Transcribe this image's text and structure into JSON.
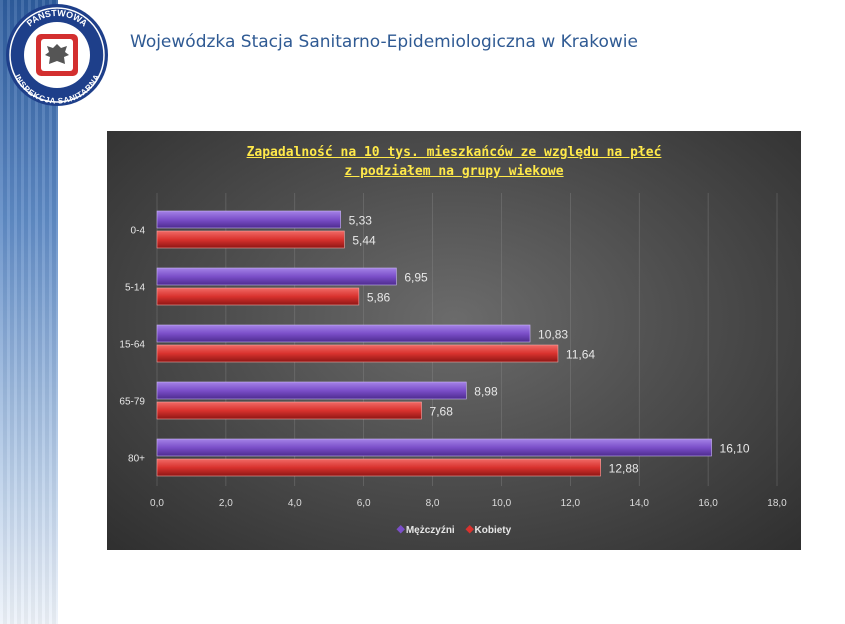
{
  "header": {
    "title": "Wojewódzka Stacja Sanitarno-Epidemiologiczna w Krakowie",
    "logo_text_top": "PAŃSTWOWA",
    "logo_text_bottom": "INSPEKCJA SANITARNA"
  },
  "colors": {
    "header_text": "#2f5a93",
    "series_men": "#7b4fc9",
    "series_women": "#d9322e",
    "title_yellow": "#ffe94a"
  },
  "chart_data": {
    "type": "bar",
    "orientation": "horizontal",
    "title_line1": "Zapadalność na 10 tys. mieszkańców ze względu na płeć",
    "title_line2": "z podziałem na grupy wiekowe",
    "categories": [
      "0-4",
      "5-14",
      "15-64",
      "65-79",
      "80+"
    ],
    "series": [
      {
        "name": "Mężczyźni",
        "values": [
          5.33,
          6.95,
          10.83,
          8.98,
          16.1
        ],
        "labels": [
          "5,33",
          "6,95",
          "10,83",
          "8,98",
          "16,10"
        ]
      },
      {
        "name": "Kobiety",
        "values": [
          5.44,
          5.86,
          11.64,
          7.68,
          12.88
        ],
        "labels": [
          "5,44",
          "5,86",
          "11,64",
          "7,68",
          "12,88"
        ]
      }
    ],
    "xlim": [
      0,
      18
    ],
    "xticks": [
      0,
      2,
      4,
      6,
      8,
      10,
      12,
      14,
      16,
      18
    ],
    "xtick_labels": [
      "0,0",
      "2,0",
      "4,0",
      "6,0",
      "8,0",
      "10,0",
      "12,0",
      "14,0",
      "16,0",
      "18,0"
    ],
    "grid": "vertical",
    "legend_position": "bottom"
  }
}
